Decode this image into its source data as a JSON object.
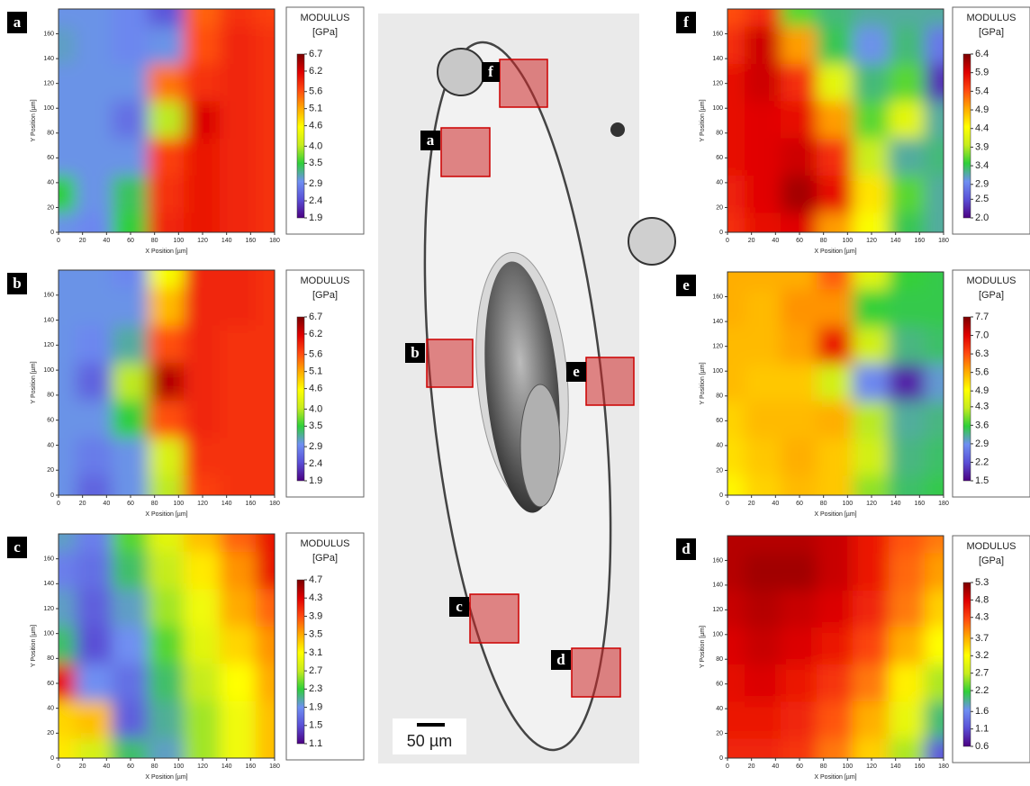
{
  "chart_data": [
    {
      "type": "heatmap",
      "label": "a",
      "colorbar_title": "MODULUS",
      "colorbar_unit": "[GPa]",
      "xlabel": "X Position [µm]",
      "ylabel": "Y Position [µm]",
      "x": [
        0,
        30,
        60,
        90,
        120,
        150,
        180
      ],
      "y": [
        180,
        150,
        120,
        90,
        60,
        30,
        0
      ],
      "z": [
        [
          3.0,
          3.0,
          2.9,
          2.5,
          5.5,
          5.8,
          5.7
        ],
        [
          3.1,
          3.0,
          2.9,
          3.0,
          5.6,
          5.9,
          5.8
        ],
        [
          3.0,
          3.0,
          3.0,
          5.4,
          5.8,
          5.9,
          5.8
        ],
        [
          3.0,
          3.0,
          2.7,
          4.0,
          6.2,
          5.9,
          5.8
        ],
        [
          3.0,
          3.0,
          3.0,
          5.7,
          6.0,
          5.9,
          5.8
        ],
        [
          3.5,
          3.0,
          3.4,
          5.8,
          6.0,
          5.9,
          5.8
        ],
        [
          3.0,
          2.9,
          3.5,
          5.9,
          6.0,
          5.9,
          5.8
        ]
      ],
      "xlim": [
        0,
        180
      ],
      "ylim": [
        0,
        180
      ],
      "xticks": [
        0,
        20,
        40,
        60,
        80,
        100,
        120,
        140,
        160,
        180
      ],
      "yticks": [
        0,
        20,
        40,
        60,
        80,
        100,
        120,
        140,
        160
      ],
      "zlim": [
        1.9,
        6.7
      ],
      "zticks": [
        1.9,
        2.4,
        2.9,
        3.5,
        {
          "value": 4,
          "label": "4.0"
        },
        4.6,
        5.1,
        5.6,
        6.2,
        6.7
      ],
      "colormap": [
        "#4b0082",
        "#5a4fd6",
        "#6f8ff2",
        "#2fcf3a",
        "#c6ec1e",
        "#ffff00",
        "#ffaa00",
        "#ff4a10",
        "#e00000",
        "#7a0000"
      ]
    },
    {
      "type": "heatmap",
      "label": "b",
      "colorbar_title": "MODULUS",
      "colorbar_unit": "[GPa]",
      "xlabel": "X Position [µm]",
      "ylabel": "Y Position [µm]",
      "x": [
        0,
        30,
        60,
        90,
        120,
        150,
        180
      ],
      "y": [
        180,
        150,
        120,
        90,
        60,
        30,
        0
      ],
      "z": [
        [
          3.0,
          3.0,
          2.9,
          4.5,
          5.9,
          5.9,
          5.8
        ],
        [
          3.0,
          3.0,
          3.0,
          5.0,
          5.9,
          5.9,
          5.8
        ],
        [
          3.0,
          2.9,
          3.2,
          5.6,
          5.9,
          5.8,
          5.8
        ],
        [
          3.0,
          2.6,
          4.0,
          6.4,
          5.9,
          5.8,
          5.8
        ],
        [
          3.0,
          3.0,
          3.5,
          5.6,
          5.9,
          5.8,
          5.8
        ],
        [
          3.0,
          2.8,
          3.0,
          4.2,
          5.8,
          5.8,
          5.8
        ],
        [
          3.0,
          2.6,
          3.0,
          4.0,
          5.7,
          5.8,
          5.8
        ]
      ],
      "xlim": [
        0,
        180
      ],
      "ylim": [
        0,
        180
      ],
      "xticks": [
        0,
        20,
        40,
        60,
        80,
        100,
        120,
        140,
        160,
        180
      ],
      "yticks": [
        0,
        20,
        40,
        60,
        80,
        100,
        120,
        140,
        160
      ],
      "zlim": [
        1.9,
        6.7
      ],
      "zticks": [
        1.9,
        2.4,
        2.9,
        3.5,
        {
          "value": 4,
          "label": "4.0"
        },
        4.6,
        5.1,
        5.6,
        6.2,
        6.7
      ],
      "colormap": [
        "#4b0082",
        "#5a4fd6",
        "#6f8ff2",
        "#2fcf3a",
        "#c6ec1e",
        "#ffff00",
        "#ffaa00",
        "#ff4a10",
        "#e00000",
        "#7a0000"
      ]
    },
    {
      "type": "heatmap",
      "label": "c",
      "colorbar_title": "MODULUS",
      "colorbar_unit": "[GPa]",
      "xlabel": "X Position [µm]",
      "ylabel": "Y Position [µm]",
      "x": [
        0,
        30,
        60,
        90,
        120,
        150,
        180
      ],
      "y": [
        180,
        150,
        120,
        90,
        60,
        30,
        0
      ],
      "z": [
        [
          2.0,
          1.8,
          2.4,
          2.9,
          3.4,
          3.8,
          4.2
        ],
        [
          1.8,
          1.7,
          2.2,
          2.7,
          3.2,
          3.6,
          4.2
        ],
        [
          2.0,
          1.6,
          2.0,
          2.6,
          3.0,
          3.5,
          3.8
        ],
        [
          2.2,
          1.5,
          1.9,
          2.4,
          2.9,
          3.3,
          3.6
        ],
        [
          4.2,
          1.9,
          1.7,
          2.2,
          2.7,
          3.1,
          3.5
        ],
        [
          3.3,
          3.4,
          1.6,
          2.1,
          2.6,
          3.0,
          3.4
        ],
        [
          3.2,
          2.8,
          2.2,
          2.0,
          2.6,
          3.0,
          3.4
        ]
      ],
      "xlim": [
        0,
        180
      ],
      "ylim": [
        0,
        180
      ],
      "xticks": [
        0,
        20,
        40,
        60,
        80,
        100,
        120,
        140,
        160,
        180
      ],
      "yticks": [
        0,
        20,
        40,
        60,
        80,
        100,
        120,
        140,
        160
      ],
      "zlim": [
        1.1,
        4.7
      ],
      "zticks": [
        1.1,
        1.5,
        1.9,
        2.3,
        2.7,
        3.1,
        3.5,
        3.9,
        4.3,
        4.7
      ],
      "colormap": [
        "#4b0082",
        "#5a4fd6",
        "#6f8ff2",
        "#2fcf3a",
        "#c6ec1e",
        "#ffff00",
        "#ffaa00",
        "#ff4a10",
        "#e00000",
        "#7a0000"
      ]
    },
    {
      "type": "heatmap",
      "label": "f",
      "colorbar_title": "MODULUS",
      "colorbar_unit": "[GPa]",
      "xlabel": "X Position [µm]",
      "ylabel": "Y Position [µm]",
      "x": [
        0,
        30,
        60,
        90,
        120,
        150,
        180
      ],
      "y": [
        180,
        150,
        120,
        90,
        60,
        30,
        0
      ],
      "z": [
        [
          5.4,
          5.6,
          3.6,
          3.3,
          3.2,
          3.2,
          3.2
        ],
        [
          5.6,
          6.0,
          5.0,
          3.4,
          3.0,
          3.3,
          2.8
        ],
        [
          5.8,
          6.0,
          5.6,
          4.2,
          3.3,
          3.6,
          2.3
        ],
        [
          5.8,
          5.9,
          5.8,
          5.0,
          3.6,
          4.2,
          3.2
        ],
        [
          5.8,
          5.9,
          6.0,
          5.6,
          4.0,
          3.2,
          3.3
        ],
        [
          5.7,
          5.9,
          6.2,
          5.8,
          4.6,
          3.6,
          3.2
        ],
        [
          5.6,
          5.8,
          5.9,
          5.0,
          4.4,
          3.4,
          3.2
        ]
      ],
      "xlim": [
        0,
        180
      ],
      "ylim": [
        0,
        180
      ],
      "xticks": [
        0,
        20,
        40,
        60,
        80,
        100,
        120,
        140,
        160,
        180
      ],
      "yticks": [
        0,
        20,
        40,
        60,
        80,
        100,
        120,
        140,
        160
      ],
      "zlim": [
        2,
        6.4
      ],
      "zticks": [
        {
          "value": 2,
          "label": "2.0"
        },
        2.5,
        2.9,
        3.4,
        3.9,
        4.4,
        4.9,
        5.4,
        5.9,
        6.4
      ],
      "colormap": [
        "#4b0082",
        "#5a4fd6",
        "#6f8ff2",
        "#2fcf3a",
        "#c6ec1e",
        "#ffff00",
        "#ffaa00",
        "#ff4a10",
        "#e00000",
        "#7a0000"
      ]
    },
    {
      "type": "heatmap",
      "label": "e",
      "colorbar_title": "MODULUS",
      "colorbar_unit": "[GPa]",
      "xlabel": "X Position [µm]",
      "ylabel": "Y Position [µm]",
      "x": [
        0,
        30,
        60,
        90,
        120,
        150,
        180
      ],
      "y": [
        180,
        150,
        120,
        90,
        60,
        30,
        0
      ],
      "z": [
        [
          5.6,
          5.6,
          5.6,
          6.2,
          4.6,
          3.6,
          3.5
        ],
        [
          5.6,
          5.5,
          5.8,
          5.8,
          3.6,
          3.5,
          3.5
        ],
        [
          5.5,
          5.5,
          5.7,
          6.8,
          4.4,
          3.3,
          3.4
        ],
        [
          5.5,
          5.4,
          5.4,
          4.4,
          2.8,
          1.8,
          3.0
        ],
        [
          5.3,
          5.5,
          5.5,
          5.6,
          4.2,
          3.2,
          3.3
        ],
        [
          5.2,
          5.4,
          5.6,
          5.4,
          4.4,
          3.3,
          3.4
        ],
        [
          5.0,
          5.3,
          5.5,
          5.4,
          4.0,
          3.4,
          3.5
        ]
      ],
      "xlim": [
        0,
        180
      ],
      "ylim": [
        0,
        180
      ],
      "xticks": [
        0,
        20,
        40,
        60,
        80,
        100,
        120,
        140,
        160,
        180
      ],
      "yticks": [
        0,
        20,
        40,
        60,
        80,
        100,
        120,
        140,
        160
      ],
      "zlim": [
        1.5,
        7.7
      ],
      "zticks": [
        1.5,
        2.2,
        2.9,
        3.6,
        4.3,
        4.9,
        5.6,
        6.3,
        {
          "value": 7,
          "label": "7.0"
        },
        7.7
      ],
      "colormap": [
        "#4b0082",
        "#5a4fd6",
        "#6f8ff2",
        "#2fcf3a",
        "#c6ec1e",
        "#ffff00",
        "#ffaa00",
        "#ff4a10",
        "#e00000",
        "#7a0000"
      ]
    },
    {
      "type": "heatmap",
      "label": "d",
      "colorbar_title": "MODULUS",
      "colorbar_unit": "[GPa]",
      "xlabel": "X Position [µm]",
      "ylabel": "Y Position [µm]",
      "x": [
        0,
        30,
        60,
        90,
        120,
        150,
        180
      ],
      "y": [
        180,
        150,
        120,
        90,
        60,
        30,
        0
      ],
      "z": [
        [
          5.0,
          5.0,
          5.0,
          4.9,
          4.6,
          4.2,
          4.0
        ],
        [
          5.0,
          5.1,
          5.1,
          4.9,
          4.6,
          4.1,
          3.8
        ],
        [
          4.9,
          5.0,
          4.9,
          4.8,
          4.5,
          4.0,
          3.5
        ],
        [
          4.8,
          4.9,
          4.8,
          4.6,
          4.3,
          3.7,
          3.2
        ],
        [
          4.7,
          4.8,
          4.6,
          4.4,
          4.0,
          3.3,
          2.6
        ],
        [
          4.6,
          4.6,
          4.5,
          4.2,
          3.7,
          3.0,
          2.0
        ],
        [
          4.5,
          4.5,
          4.4,
          4.0,
          3.5,
          2.6,
          1.2
        ]
      ],
      "xlim": [
        0,
        180
      ],
      "ylim": [
        0,
        180
      ],
      "xticks": [
        0,
        20,
        40,
        60,
        80,
        100,
        120,
        140,
        160,
        180
      ],
      "yticks": [
        0,
        20,
        40,
        60,
        80,
        100,
        120,
        140,
        160
      ],
      "zlim": [
        0.6,
        5.3
      ],
      "zticks": [
        0.6,
        1.1,
        1.6,
        2.2,
        2.7,
        3.2,
        3.7,
        4.3,
        4.8,
        5.3
      ],
      "colormap": [
        "#4b0082",
        "#5a4fd6",
        "#6f8ff2",
        "#2fcf3a",
        "#c6ec1e",
        "#ffff00",
        "#ffaa00",
        "#ff4a10",
        "#e00000",
        "#7a0000"
      ]
    }
  ],
  "micrograph": {
    "labels": [
      "f",
      "a",
      "b",
      "e",
      "c",
      "d"
    ],
    "scale_bar": "50 µm"
  }
}
